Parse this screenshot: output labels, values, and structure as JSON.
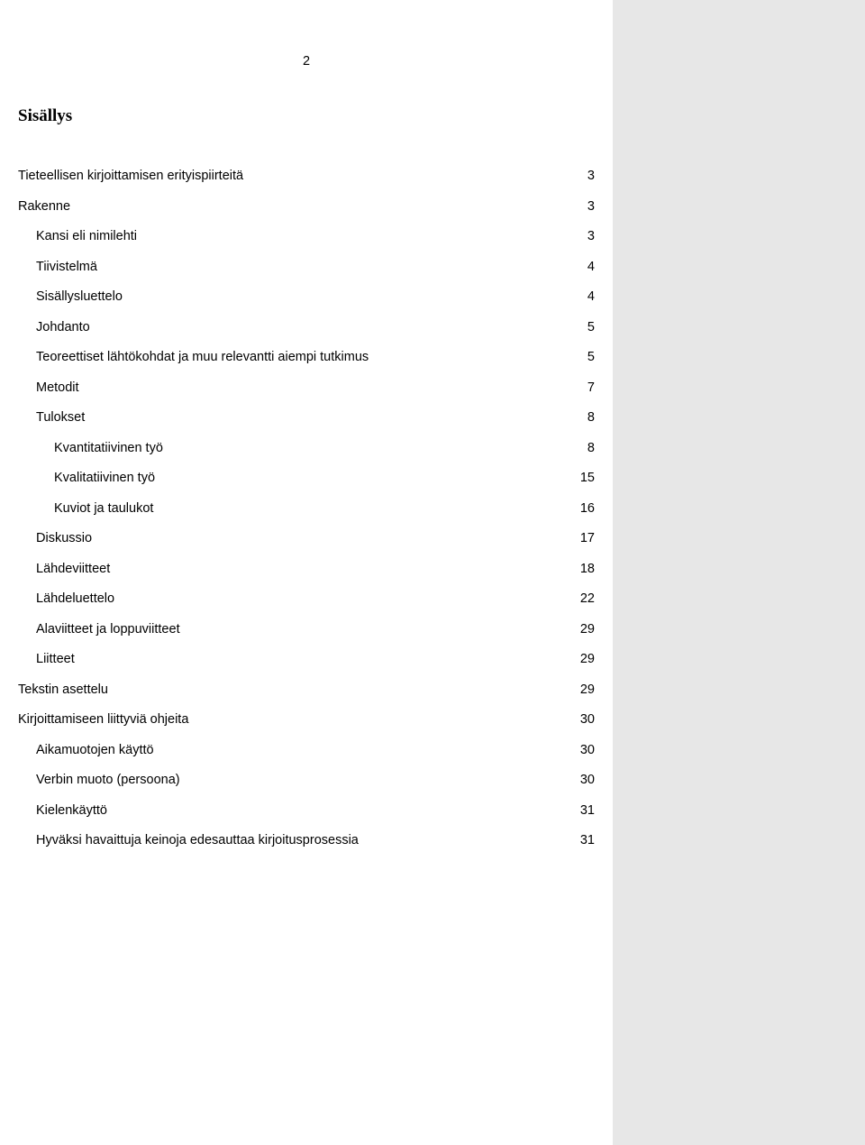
{
  "page_number": "2",
  "title": "Sisällys",
  "toc": [
    {
      "label": "Tieteellisen kirjoittamisen erityispiirteitä",
      "page": "3",
      "level": 0
    },
    {
      "label": "Rakenne",
      "page": "3",
      "level": 0
    },
    {
      "label": "Kansi eli nimilehti",
      "page": "3",
      "level": 1
    },
    {
      "label": "Tiivistelmä",
      "page": "4",
      "level": 1
    },
    {
      "label": "Sisällysluettelo",
      "page": "4",
      "level": 1
    },
    {
      "label": "Johdanto",
      "page": "5",
      "level": 1
    },
    {
      "label": "Teoreettiset lähtökohdat ja muu relevantti aiempi tutkimus",
      "page": "5",
      "level": 1
    },
    {
      "label": "Metodit",
      "page": "7",
      "level": 1
    },
    {
      "label": "Tulokset",
      "page": "8",
      "level": 1
    },
    {
      "label": "Kvantitatiivinen työ",
      "page": "8",
      "level": 2
    },
    {
      "label": "Kvalitatiivinen työ",
      "page": "15",
      "level": 2
    },
    {
      "label": "Kuviot ja taulukot",
      "page": "16",
      "level": 2
    },
    {
      "label": "Diskussio",
      "page": "17",
      "level": 1
    },
    {
      "label": "Lähdeviitteet",
      "page": "18",
      "level": 1
    },
    {
      "label": "Lähdeluettelo",
      "page": "22",
      "level": 1
    },
    {
      "label": "Alaviitteet ja loppuviitteet",
      "page": "29",
      "level": 1
    },
    {
      "label": "Liitteet",
      "page": "29",
      "level": 1
    },
    {
      "label": "Tekstin asettelu",
      "page": "29",
      "level": 0
    },
    {
      "label": "Kirjoittamiseen liittyviä ohjeita",
      "page": "30",
      "level": 0
    },
    {
      "label": "Aikamuotojen käyttö",
      "page": "30",
      "level": 1
    },
    {
      "label": "Verbin muoto (persoona)",
      "page": "30",
      "level": 1
    },
    {
      "label": "Kielenkäyttö",
      "page": "31",
      "level": 1
    },
    {
      "label": "Hyväksi havaittuja keinoja edesauttaa kirjoitusprosessia",
      "page": "31",
      "level": 1
    }
  ]
}
